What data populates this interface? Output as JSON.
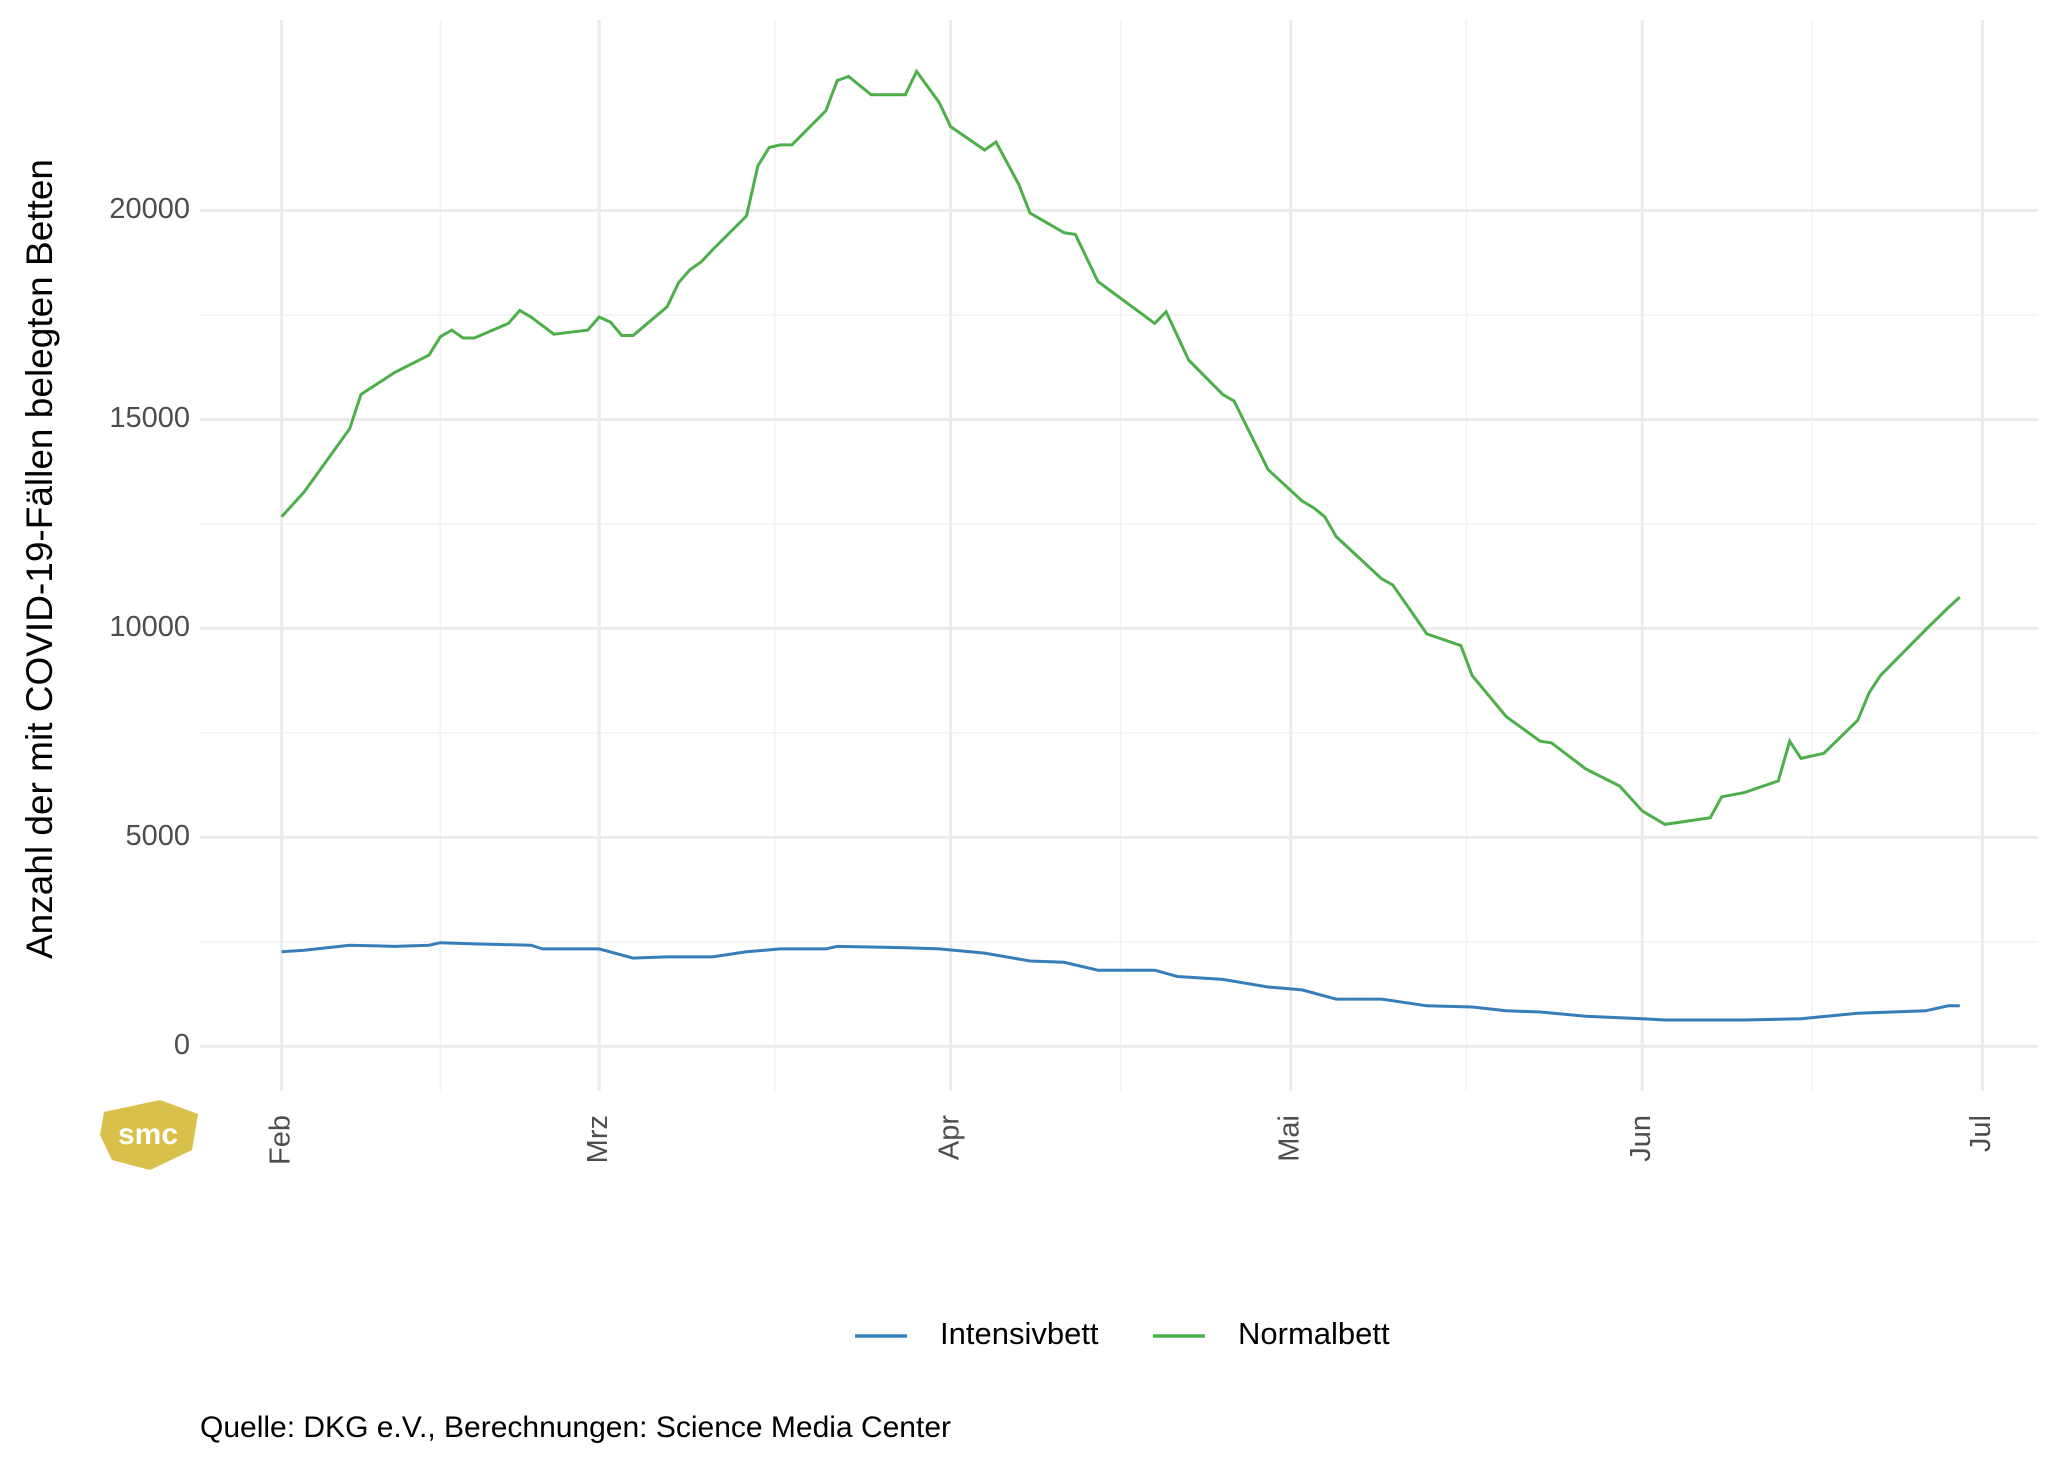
{
  "chart_data": {
    "type": "line",
    "y_label": "Anzahl der mit COVID-19-Fällen belegten Betten",
    "caption": "Quelle: DKG e.V., Berechnungen: Science Media Center",
    "logo": "smc",
    "xlim": [
      -7.2,
      154.9
    ],
    "xticks": [
      {
        "value": 0,
        "label": "Feb"
      },
      {
        "value": 28,
        "label": "Mrz"
      },
      {
        "value": 59,
        "label": "Apr"
      },
      {
        "value": 89,
        "label": "Mai"
      },
      {
        "value": 120,
        "label": "Jun"
      },
      {
        "value": 150,
        "label": "Jul"
      }
    ],
    "ylim": [
      -1070,
      24560
    ],
    "yticks": [
      0,
      5000,
      10000,
      15000,
      20000
    ],
    "grid": true,
    "legend": "bottom",
    "series": [
      {
        "name": "Intensivbett",
        "color": "#377eb8",
        "x": [
          0,
          2,
          6,
          10,
          13,
          14,
          17,
          22,
          23,
          28,
          31,
          34,
          38,
          41,
          44,
          48,
          49,
          55,
          58,
          62,
          66,
          69,
          72,
          77,
          79,
          83,
          87,
          90,
          93,
          97,
          101,
          105,
          108,
          111,
          115,
          120,
          122,
          129,
          134,
          139,
          142,
          145,
          147,
          148
        ],
        "values": [
          2260,
          2300,
          2420,
          2390,
          2420,
          2480,
          2450,
          2420,
          2330,
          2330,
          2110,
          2140,
          2140,
          2260,
          2330,
          2330,
          2390,
          2360,
          2330,
          2230,
          2040,
          2010,
          1820,
          1820,
          1670,
          1600,
          1420,
          1350,
          1130,
          1130,
          970,
          940,
          850,
          820,
          720,
          660,
          630,
          630,
          660,
          790,
          820,
          850,
          970,
          970
        ]
      },
      {
        "name": "Normalbett",
        "color": "#4daf4a",
        "x": [
          0,
          2,
          6,
          7,
          10,
          13,
          14,
          15,
          16,
          17,
          20,
          21,
          22,
          24,
          27,
          28,
          29,
          30,
          31,
          34,
          35,
          36,
          37,
          38,
          41,
          42,
          43,
          44,
          45,
          48,
          49,
          50,
          52,
          55,
          56,
          58,
          59,
          62,
          63,
          65,
          66,
          69,
          70,
          72,
          77,
          78,
          80,
          83,
          84,
          87,
          90,
          91,
          92,
          93,
          97,
          98,
          101,
          104,
          105,
          108,
          111,
          112,
          115,
          118,
          120,
          122,
          126,
          127,
          129,
          132,
          133,
          134,
          136,
          139,
          140,
          141,
          145,
          147,
          148
        ],
        "values": [
          12670,
          13270,
          14780,
          15600,
          16130,
          16540,
          16980,
          17140,
          16950,
          16950,
          17300,
          17610,
          17450,
          17040,
          17140,
          17450,
          17330,
          17010,
          17010,
          17700,
          18270,
          18580,
          18770,
          19060,
          19870,
          21070,
          21510,
          21570,
          21570,
          22390,
          23110,
          23210,
          22770,
          22770,
          23330,
          22580,
          22010,
          21450,
          21640,
          20630,
          19940,
          19470,
          19430,
          18300,
          17300,
          17580,
          16420,
          15600,
          15440,
          13800,
          13050,
          12890,
          12670,
          12200,
          11190,
          11040,
          9870,
          9590,
          8870,
          7890,
          7300,
          7260,
          6640,
          6230,
          5630,
          5310,
          5470,
          5970,
          6070,
          6350,
          7300,
          6890,
          7010,
          7800,
          8460,
          8870,
          9970,
          10500,
          10750
        ]
      }
    ]
  }
}
